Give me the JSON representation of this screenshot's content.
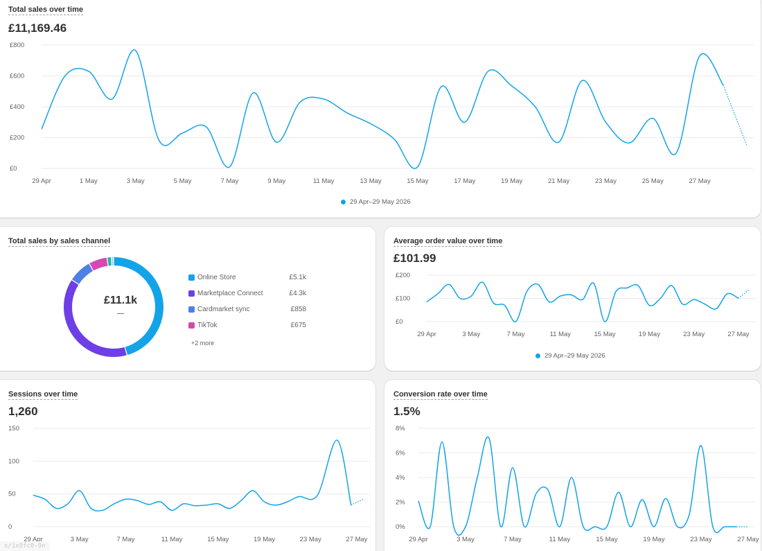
{
  "accent_color": "#13a3e8",
  "total_sales": {
    "title": "Total sales over time",
    "metric": "£11,169.46",
    "legend_label": "29 Apr–29 May 2026",
    "chart_data": {
      "type": "line",
      "y_ticks": [
        "£800",
        "£600",
        "£400",
        "£200",
        "£0"
      ],
      "ylim": [
        0,
        800
      ],
      "x_tick_labels": [
        "29 Apr",
        "1 May",
        "3 May",
        "5 May",
        "7 May",
        "9 May",
        "11 May",
        "13 May",
        "15 May",
        "17 May",
        "19 May",
        "21 May",
        "23 May",
        "25 May",
        "27 May"
      ],
      "x_tick_index": [
        0,
        2,
        4,
        6,
        8,
        10,
        12,
        14,
        16,
        18,
        20,
        22,
        24,
        26,
        28
      ],
      "values": [
        255,
        600,
        630,
        450,
        765,
        180,
        230,
        270,
        10,
        490,
        170,
        430,
        450,
        360,
        290,
        190,
        10,
        530,
        300,
        630,
        535,
        400,
        170,
        570,
        300,
        165,
        325,
        100,
        730,
        540,
        150
      ],
      "projected_from_index": 29
    }
  },
  "channels": {
    "title": "Total sales by sales channel",
    "center_value": "£11.1k",
    "center_sub": "—",
    "more_label": "+2 more",
    "chart_data": {
      "type": "pie",
      "items": [
        {
          "name": "Online Store",
          "value_label": "£5.1k",
          "value": 5100,
          "color": "#13a3e8"
        },
        {
          "name": "Marketplace Connect",
          "value_label": "£4.3k",
          "value": 4300,
          "color": "#6e3ee6"
        },
        {
          "name": "Cardmarket sync",
          "value_label": "£858",
          "value": 858,
          "color": "#4f7fe6"
        },
        {
          "name": "TikTok",
          "value_label": "£675",
          "value": 675,
          "color": "#d648b2"
        },
        {
          "name": "",
          "value_label": "",
          "value": 160,
          "color": "#2bb3a8"
        },
        {
          "name": "",
          "value_label": "",
          "value": 76,
          "color": "#7fd0f0"
        }
      ],
      "legend_visible_count": 4
    }
  },
  "aov": {
    "title": "Average order value over time",
    "metric": "£101.99",
    "legend_label": "29 Apr–29 May 2026",
    "chart_data": {
      "type": "line",
      "y_ticks": [
        "£200",
        "£100",
        "£0"
      ],
      "ylim": [
        0,
        200
      ],
      "x_tick_labels": [
        "29 Apr",
        "3 May",
        "7 May",
        "11 May",
        "15 May",
        "19 May",
        "23 May",
        "27 May"
      ],
      "x_tick_index": [
        0,
        4,
        8,
        12,
        16,
        20,
        24,
        28
      ],
      "values": [
        85,
        120,
        160,
        100,
        110,
        170,
        80,
        70,
        0,
        130,
        160,
        85,
        110,
        115,
        95,
        165,
        0,
        130,
        145,
        155,
        70,
        100,
        155,
        75,
        95,
        75,
        55,
        120,
        100,
        140
      ],
      "projected_from_index": 28
    }
  },
  "sessions": {
    "title": "Sessions over time",
    "metric": "1,260",
    "chart_data": {
      "type": "line",
      "y_ticks": [
        "150",
        "100",
        "50",
        "0"
      ],
      "ylim": [
        0,
        150
      ],
      "x_tick_labels": [
        "29 Apr",
        "3 May",
        "7 May",
        "11 May",
        "15 May",
        "19 May",
        "23 May",
        "27 May"
      ],
      "x_tick_index": [
        0,
        4,
        8,
        12,
        16,
        20,
        24,
        28
      ],
      "values": [
        48,
        42,
        28,
        35,
        55,
        28,
        25,
        35,
        42,
        40,
        34,
        38,
        25,
        35,
        32,
        33,
        35,
        28,
        40,
        55,
        38,
        33,
        38,
        46,
        48,
        132,
        33,
        42
      ],
      "x_positions": [
        0,
        1,
        2,
        3,
        4,
        5,
        6,
        7,
        8,
        9,
        10,
        11,
        12,
        13,
        14,
        15,
        16,
        17,
        18,
        19,
        20,
        21,
        22,
        23,
        24.6,
        26.3,
        27.5,
        28.6
      ],
      "projected_from_index": 26
    }
  },
  "conversion": {
    "title": "Conversion rate over time",
    "metric": "1.5%",
    "chart_data": {
      "type": "line",
      "y_ticks": [
        "8%",
        "6%",
        "4%",
        "2%",
        "0%"
      ],
      "ylim": [
        0,
        8
      ],
      "x_tick_labels": [
        "29 Apr",
        "3 May",
        "7 May",
        "11 May",
        "15 May",
        "19 May",
        "23 May",
        "27 May"
      ],
      "x_tick_index": [
        0,
        4,
        8,
        12,
        16,
        20,
        24,
        28
      ],
      "values": [
        2.1,
        0,
        6.9,
        0,
        0,
        4.0,
        7.2,
        0,
        4.8,
        0,
        2.7,
        3.0,
        0,
        4.0,
        0,
        0,
        0,
        2.8,
        0,
        2.2,
        0,
        2.3,
        0,
        1.0,
        6.6,
        0,
        0,
        0,
        0
      ],
      "projected_from_index": 27
    }
  },
  "url_fragment": "s/1x9fc0-9n"
}
